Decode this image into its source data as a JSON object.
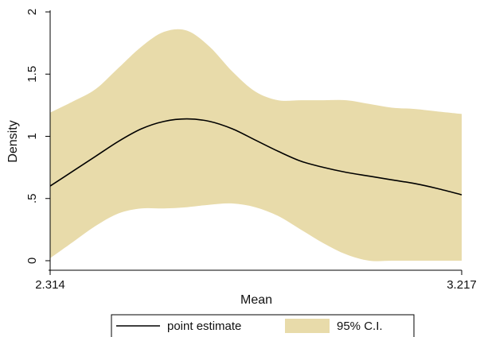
{
  "chart_data": {
    "type": "area",
    "xlabel": "Mean",
    "ylabel": "Density",
    "xlim": [
      2.314,
      3.217
    ],
    "ylim": [
      0,
      2
    ],
    "x_ticks": [
      {
        "value": 2.314,
        "label": "2.314"
      },
      {
        "value": 3.217,
        "label": "3.217"
      }
    ],
    "y_ticks": [
      {
        "value": 0,
        "label": "0"
      },
      {
        "value": 0.5,
        "label": ".5"
      },
      {
        "value": 1,
        "label": "1"
      },
      {
        "value": 1.5,
        "label": "1.5"
      },
      {
        "value": 2,
        "label": "2"
      }
    ],
    "grid": false,
    "legend_position": "bottom",
    "series": [
      {
        "name": "point estimate",
        "kind": "line",
        "color": "#000000",
        "x": [
          2.314,
          2.364,
          2.414,
          2.464,
          2.514,
          2.564,
          2.614,
          2.664,
          2.714,
          2.764,
          2.814,
          2.864,
          2.914,
          2.964,
          3.014,
          3.064,
          3.114,
          3.164,
          3.217
        ],
        "values": [
          0.6,
          0.72,
          0.84,
          0.96,
          1.06,
          1.12,
          1.14,
          1.12,
          1.06,
          0.97,
          0.88,
          0.8,
          0.75,
          0.71,
          0.68,
          0.65,
          0.62,
          0.58,
          0.53
        ]
      },
      {
        "name": "95% C.I.",
        "kind": "band",
        "color": "#e8dbaa",
        "x": [
          2.314,
          2.364,
          2.414,
          2.464,
          2.514,
          2.564,
          2.614,
          2.664,
          2.714,
          2.764,
          2.814,
          2.864,
          2.914,
          2.964,
          3.014,
          3.064,
          3.114,
          3.164,
          3.217
        ],
        "lower": [
          0.02,
          0.15,
          0.28,
          0.38,
          0.42,
          0.42,
          0.43,
          0.45,
          0.46,
          0.43,
          0.36,
          0.25,
          0.14,
          0.05,
          0.0,
          0.0,
          0.0,
          0.0,
          0.0
        ],
        "upper": [
          1.19,
          1.28,
          1.38,
          1.55,
          1.72,
          1.84,
          1.85,
          1.72,
          1.52,
          1.36,
          1.29,
          1.29,
          1.29,
          1.29,
          1.26,
          1.23,
          1.22,
          1.2,
          1.18
        ]
      }
    ]
  }
}
